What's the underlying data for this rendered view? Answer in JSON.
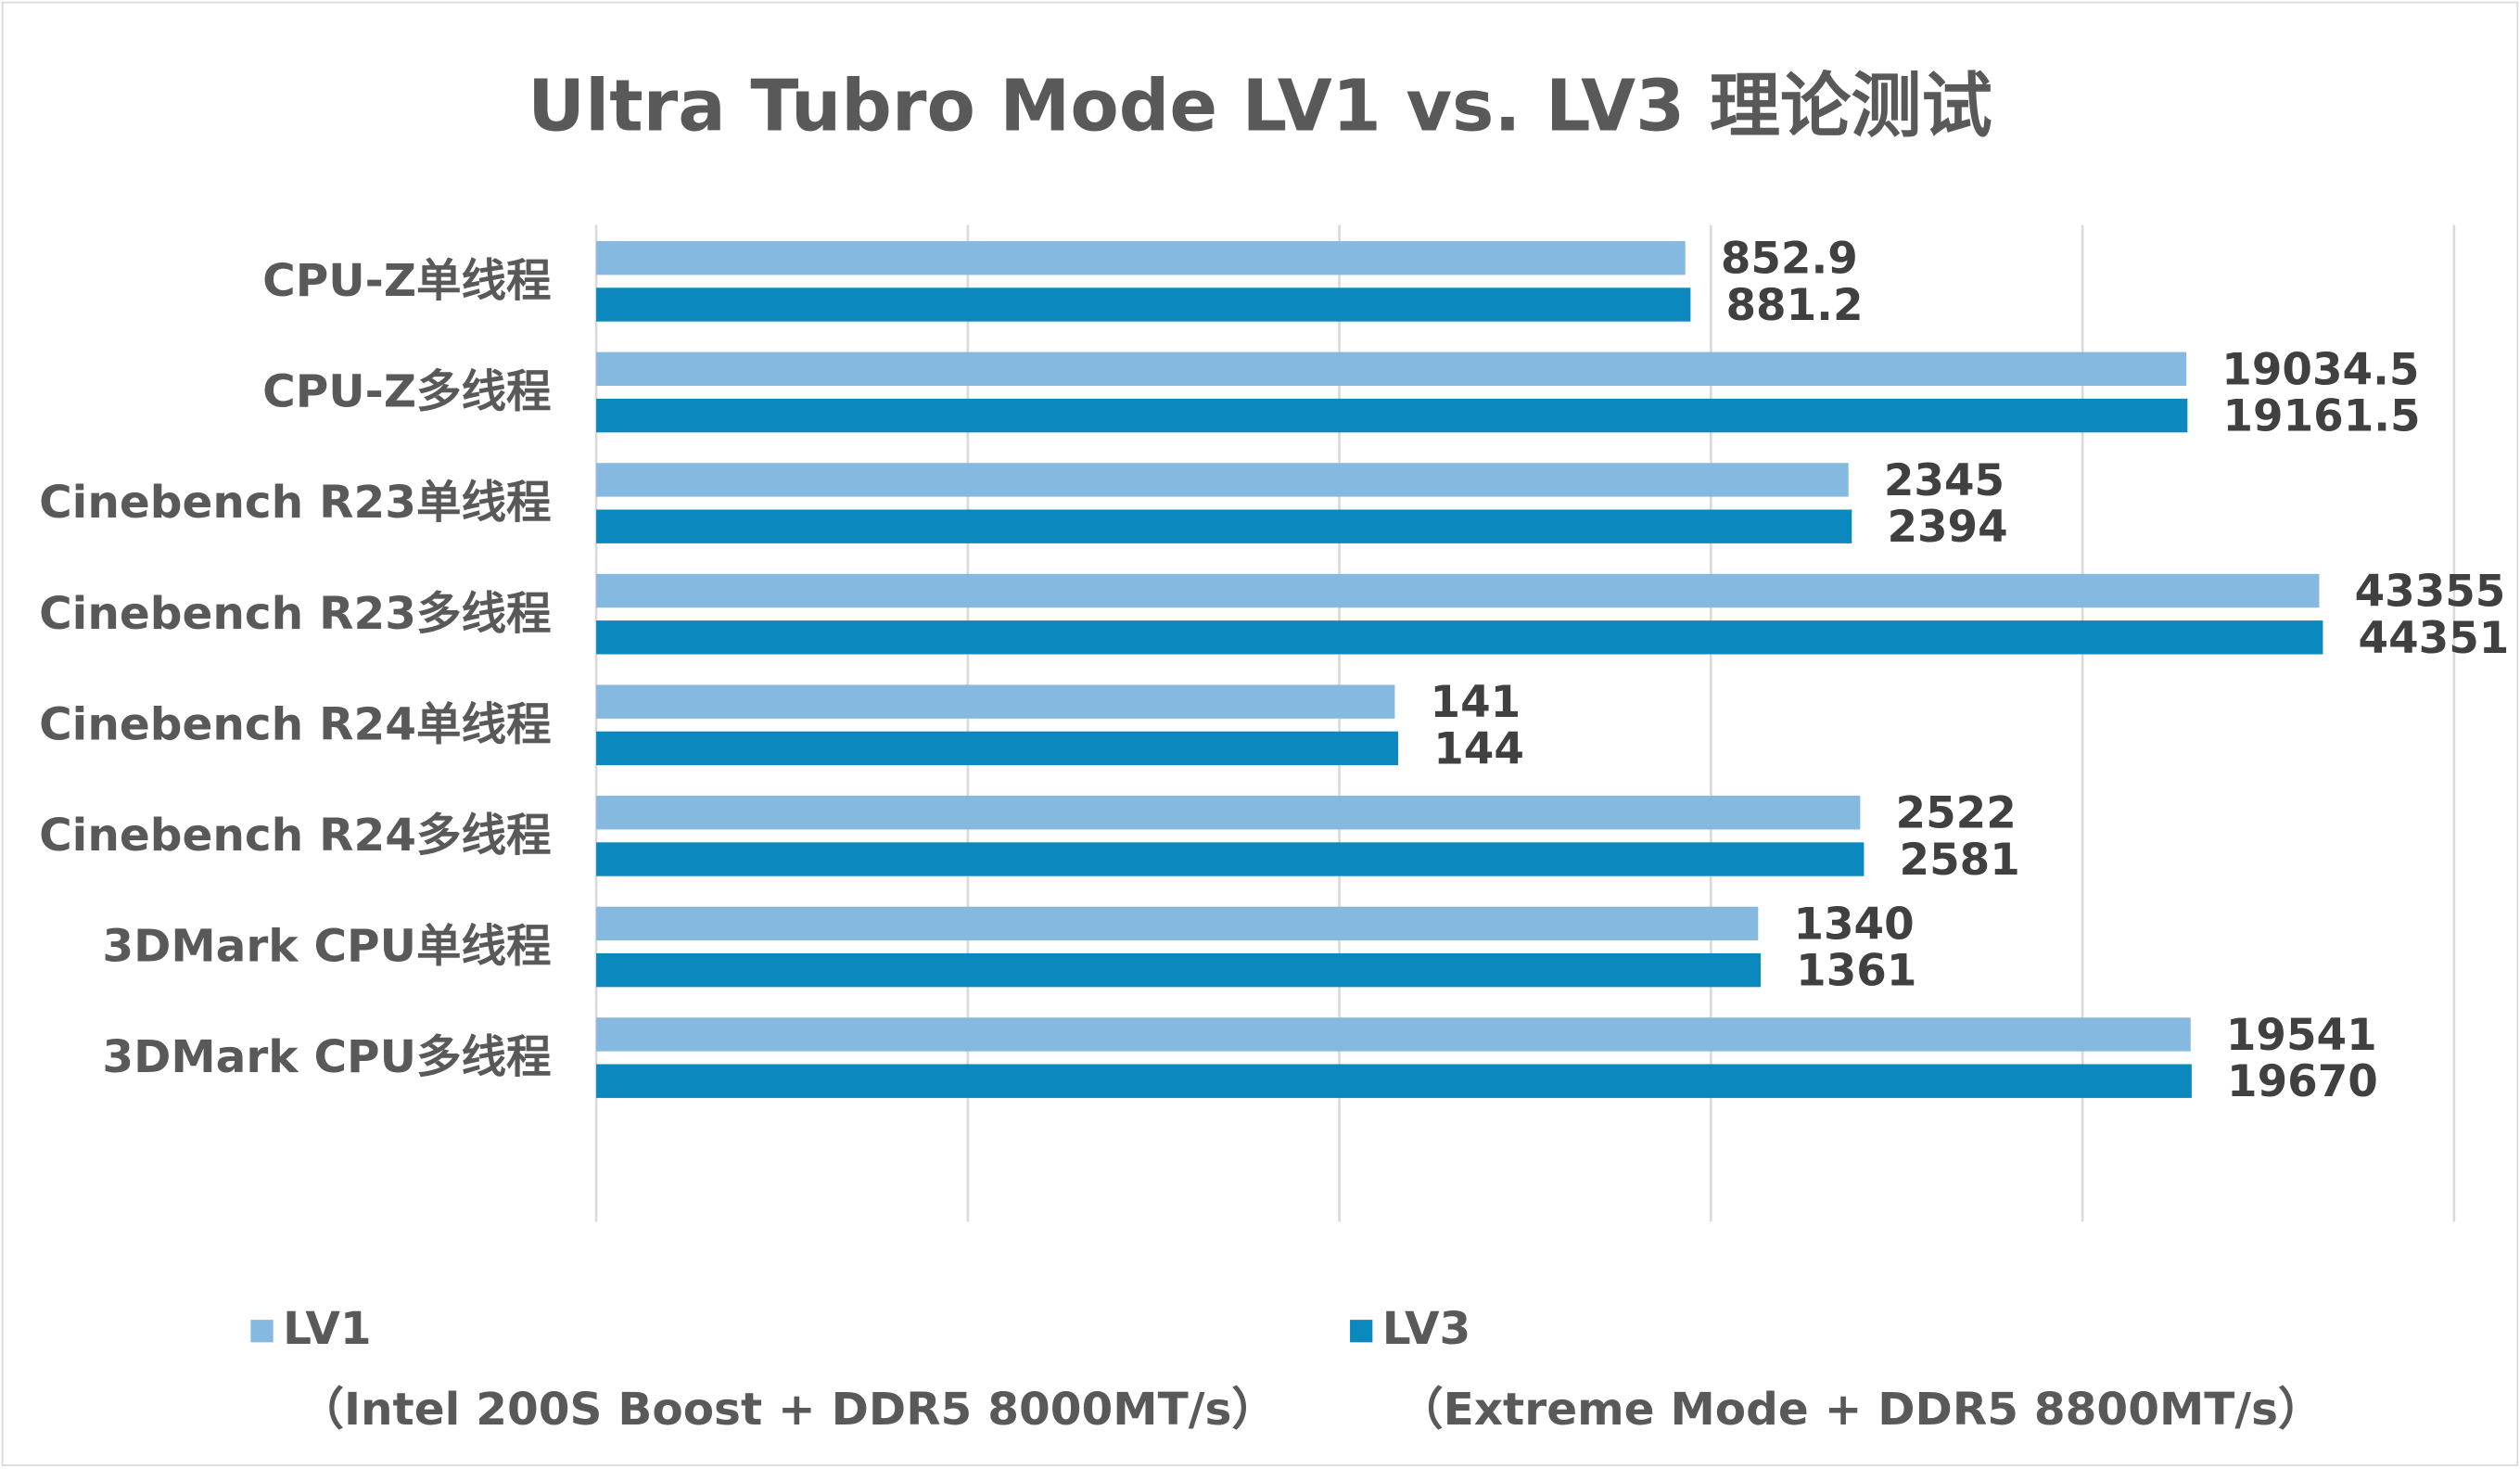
{
  "chart_data": {
    "type": "bar",
    "orientation": "horizontal",
    "title": "Ultra Tubro Mode LV1 vs. LV3 理论测试",
    "categories": [
      "CPU-Z单线程",
      "CPU-Z多线程",
      "Cinebench R23单线程",
      "Cinebench R23多线程",
      "Cinebench R24单线程",
      "Cinebench R24多线程",
      "3DMark CPU单线程",
      "3DMark CPU多线程"
    ],
    "series": [
      {
        "name": "LV1",
        "subtitle": "（Intel 200S Boost + DDR5 8000MT/s）",
        "color": "#85B9E0",
        "values": [
          852.9,
          19034.5,
          2345,
          43355,
          141,
          2522,
          1340,
          19541
        ],
        "labels": [
          "852.9",
          "19034.5",
          "2345",
          "43355",
          "141",
          "2522",
          "1340",
          "19541"
        ]
      },
      {
        "name": "LV3",
        "subtitle": "（Extreme Mode + DDR5 8800MT/s）",
        "color": "#0B89BE",
        "values": [
          881.2,
          19161.5,
          2394,
          44351,
          144,
          2581,
          1361,
          19670
        ],
        "labels": [
          "881.2",
          "19161.5",
          "2394",
          "44351",
          "144",
          "2581",
          "1361",
          "19670"
        ]
      }
    ],
    "xscale": "log",
    "xlim": [
      1,
      100000
    ],
    "grid": true,
    "legend": "bottom"
  }
}
